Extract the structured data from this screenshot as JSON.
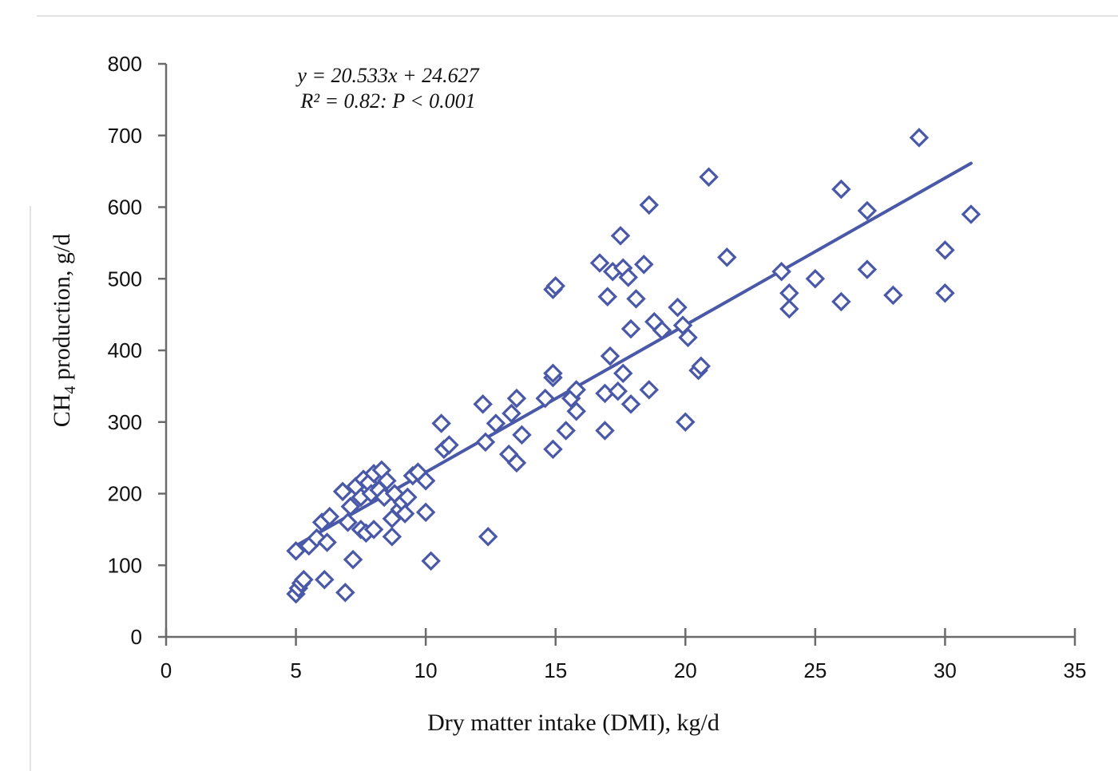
{
  "chart_data": {
    "type": "scatter",
    "title": "",
    "xlabel": "Dry matter intake (DMI), kg/d",
    "ylabel_prefix": "CH",
    "ylabel_sub": "4",
    "ylabel_suffix": " production, g/d",
    "xlim": [
      0,
      35
    ],
    "ylim": [
      0,
      800
    ],
    "x_ticks": [
      "0",
      "5",
      "10",
      "15",
      "20",
      "25",
      "30",
      "35"
    ],
    "y_ticks": [
      "0",
      "100",
      "200",
      "300",
      "400",
      "500",
      "600",
      "700",
      "800"
    ],
    "grid": false,
    "legend": "none",
    "equation": {
      "line1": "y = 20.533x + 24.627",
      "line2": "R² = 0.82: P < 0.001"
    },
    "trendline": {
      "slope": 20.533,
      "intercept": 24.627,
      "x_range": [
        5,
        31
      ]
    },
    "marker_color": "#4a58a8",
    "line_color": "#4a58a8",
    "points": [
      [
        5.0,
        60
      ],
      [
        5.1,
        68
      ],
      [
        5.2,
        75
      ],
      [
        5.3,
        80
      ],
      [
        5.0,
        120
      ],
      [
        5.5,
        127
      ],
      [
        5.8,
        138
      ],
      [
        6.0,
        160
      ],
      [
        6.2,
        132
      ],
      [
        6.1,
        80
      ],
      [
        6.3,
        168
      ],
      [
        6.9,
        62
      ],
      [
        6.8,
        203
      ],
      [
        7.0,
        160
      ],
      [
        7.1,
        182
      ],
      [
        7.2,
        108
      ],
      [
        7.3,
        210
      ],
      [
        7.5,
        150
      ],
      [
        7.5,
        195
      ],
      [
        7.6,
        220
      ],
      [
        7.7,
        145
      ],
      [
        7.8,
        215
      ],
      [
        7.9,
        200
      ],
      [
        8.0,
        150
      ],
      [
        8.0,
        228
      ],
      [
        8.2,
        205
      ],
      [
        8.3,
        233
      ],
      [
        8.4,
        195
      ],
      [
        8.5,
        218
      ],
      [
        8.7,
        140
      ],
      [
        8.7,
        165
      ],
      [
        8.8,
        200
      ],
      [
        9.0,
        178
      ],
      [
        9.1,
        188
      ],
      [
        9.2,
        172
      ],
      [
        9.3,
        195
      ],
      [
        9.5,
        225
      ],
      [
        9.7,
        230
      ],
      [
        10.0,
        218
      ],
      [
        10.0,
        174
      ],
      [
        10.2,
        106
      ],
      [
        10.6,
        298
      ],
      [
        10.7,
        262
      ],
      [
        10.9,
        268
      ],
      [
        12.2,
        325
      ],
      [
        12.3,
        272
      ],
      [
        12.4,
        140
      ],
      [
        12.7,
        298
      ],
      [
        13.2,
        255
      ],
      [
        13.3,
        312
      ],
      [
        13.5,
        333
      ],
      [
        13.5,
        243
      ],
      [
        13.7,
        282
      ],
      [
        14.6,
        333
      ],
      [
        14.9,
        485
      ],
      [
        15.0,
        490
      ],
      [
        14.9,
        362
      ],
      [
        14.9,
        368
      ],
      [
        14.9,
        262
      ],
      [
        15.4,
        288
      ],
      [
        15.6,
        333
      ],
      [
        15.8,
        315
      ],
      [
        15.8,
        345
      ],
      [
        16.7,
        522
      ],
      [
        16.9,
        288
      ],
      [
        17.0,
        475
      ],
      [
        16.9,
        340
      ],
      [
        17.1,
        392
      ],
      [
        17.2,
        510
      ],
      [
        17.4,
        343
      ],
      [
        17.5,
        560
      ],
      [
        17.6,
        515
      ],
      [
        17.6,
        368
      ],
      [
        17.8,
        502
      ],
      [
        17.9,
        325
      ],
      [
        17.9,
        430
      ],
      [
        18.1,
        472
      ],
      [
        18.4,
        520
      ],
      [
        18.6,
        603
      ],
      [
        18.6,
        345
      ],
      [
        18.8,
        440
      ],
      [
        19.1,
        428
      ],
      [
        19.7,
        460
      ],
      [
        19.9,
        435
      ],
      [
        20.1,
        418
      ],
      [
        20.0,
        300
      ],
      [
        20.5,
        372
      ],
      [
        20.6,
        378
      ],
      [
        20.9,
        642
      ],
      [
        21.6,
        530
      ],
      [
        23.7,
        510
      ],
      [
        24.0,
        480
      ],
      [
        24.0,
        458
      ],
      [
        25.0,
        500
      ],
      [
        26.0,
        625
      ],
      [
        26.0,
        468
      ],
      [
        27.0,
        595
      ],
      [
        27.0,
        513
      ],
      [
        28.0,
        477
      ],
      [
        29.0,
        697
      ],
      [
        30.0,
        540
      ],
      [
        30.0,
        480
      ],
      [
        31.0,
        590
      ]
    ]
  }
}
